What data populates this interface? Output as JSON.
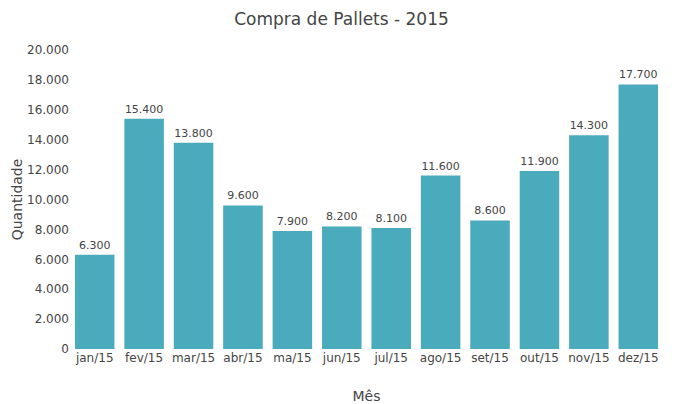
{
  "chart_data": {
    "type": "bar",
    "title": "Compra de Pallets - 2015",
    "xlabel": "Mês",
    "ylabel": "Quantidade",
    "categories": [
      "jan/15",
      "fev/15",
      "mar/15",
      "abr/15",
      "ma/15",
      "jun/15",
      "jul/15",
      "ago/15",
      "set/15",
      "out/15",
      "nov/15",
      "dez/15"
    ],
    "values": [
      6300,
      15400,
      13800,
      9600,
      7900,
      8200,
      8100,
      11600,
      8600,
      11900,
      14300,
      17700
    ],
    "value_labels": [
      "6.300",
      "15.400",
      "13.800",
      "9.600",
      "7.900",
      "8.200",
      "8.100",
      "11.600",
      "8.600",
      "11.900",
      "14.300",
      "17.700"
    ],
    "data_labels": true,
    "color": "#4aabbc",
    "ylim": [
      0,
      20000
    ],
    "yticks": [
      0,
      {
        "value": 2000,
        "label": "2.000"
      },
      {
        "value": 4000,
        "label": "4.000"
      },
      {
        "value": 6000,
        "label": "6.000"
      },
      {
        "value": 8000,
        "label": "8.000"
      },
      {
        "value": 10000,
        "label": "10.000"
      },
      {
        "value": 12000,
        "label": "12.000"
      },
      {
        "value": 14000,
        "label": "14.000"
      },
      {
        "value": 16000,
        "label": "16.000"
      },
      {
        "value": 18000,
        "label": "18.000"
      },
      {
        "value": 20000,
        "label": "20.000"
      }
    ],
    "grid": false
  }
}
